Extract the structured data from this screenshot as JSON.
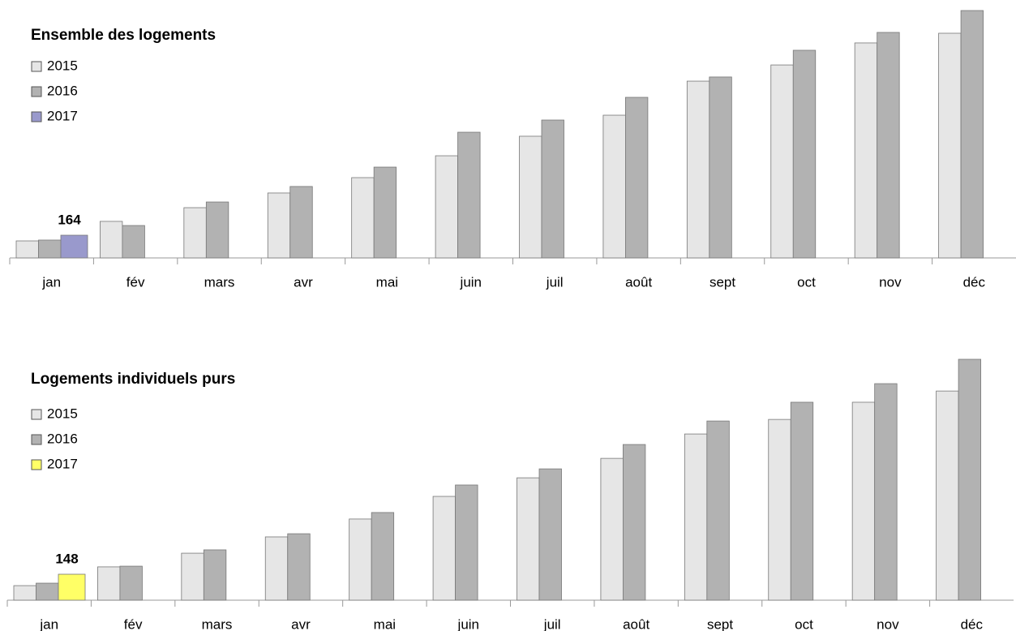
{
  "chart_data": [
    {
      "type": "bar",
      "title": "Ensemble des logements",
      "categories": [
        "jan",
        "fév",
        "mars",
        "avr",
        "mai",
        "juin",
        "juil",
        "août",
        "sept",
        "oct",
        "nov",
        "déc"
      ],
      "series": [
        {
          "name": "2015",
          "color": "#e6e6e6",
          "values": [
            123,
            264,
            363,
            469,
            580,
            738,
            879,
            1031,
            1277,
            1394,
            1553,
            1623
          ]
        },
        {
          "name": "2016",
          "color": "#b2b2b2",
          "values": [
            129,
            234,
            404,
            516,
            656,
            908,
            996,
            1160,
            1307,
            1500,
            1629,
            1787
          ]
        },
        {
          "name": "2017",
          "color": "#9999cc",
          "values": [
            164,
            null,
            null,
            null,
            null,
            null,
            null,
            null,
            null,
            null,
            null,
            null
          ]
        }
      ]
    },
    {
      "type": "bar",
      "title": "Logements individuels purs",
      "categories": [
        "jan",
        "fév",
        "mars",
        "avr",
        "mai",
        "juin",
        "juil",
        "août",
        "sept",
        "oct",
        "nov",
        "déc"
      ],
      "series": [
        {
          "name": "2015",
          "color": "#e6e6e6",
          "values": [
            83,
            190,
            268,
            361,
            463,
            592,
            698,
            809,
            948,
            1031,
            1129,
            1193
          ]
        },
        {
          "name": "2016",
          "color": "#b2b2b2",
          "values": [
            97,
            194,
            287,
            379,
            500,
            657,
            749,
            888,
            1022,
            1129,
            1235,
            1374
          ]
        },
        {
          "name": "2017",
          "color": "#ffff66",
          "values": [
            148,
            null,
            null,
            null,
            null,
            null,
            null,
            null,
            null,
            null,
            null,
            null
          ]
        }
      ]
    }
  ]
}
